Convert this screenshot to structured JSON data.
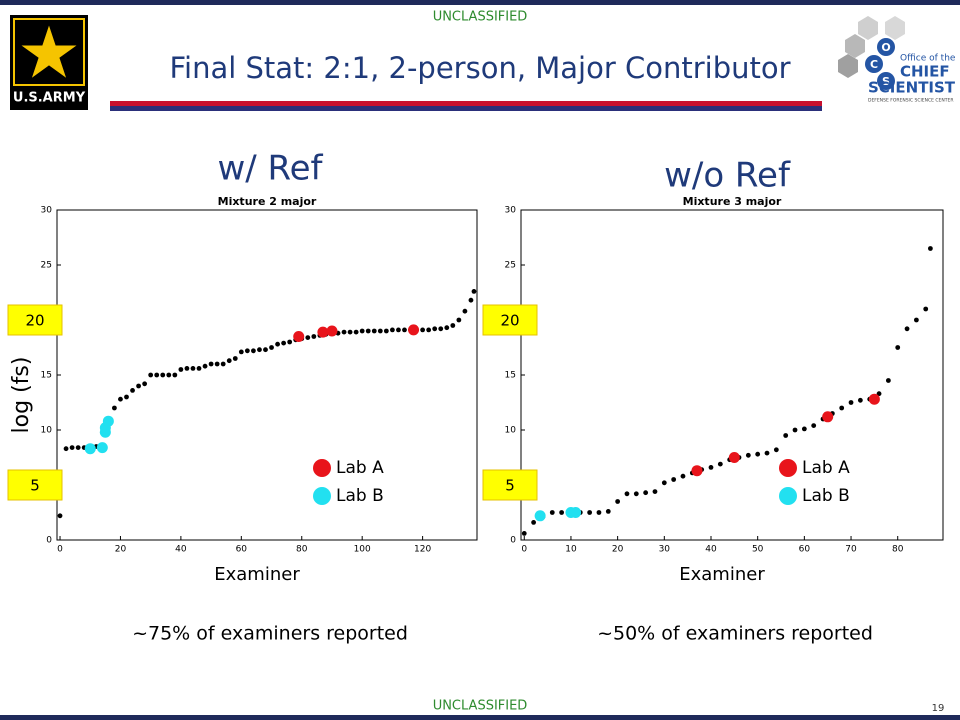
{
  "header": {
    "classification_top": "UNCLASSIFIED",
    "title": "Final Stat:  2:1, 2-person, Major Contributor",
    "army_logo": "U.S.ARMY",
    "ocs_logo": {
      "letters": [
        "O",
        "C",
        "S"
      ],
      "office": "Office of the",
      "chief": "CHIEF",
      "scientist": "SCIENTIST",
      "center": "DEFENSE FORENSIC SCIENCE CENTER"
    }
  },
  "footer": {
    "classification_bottom": "UNCLASSIFIED",
    "page_number": "19"
  },
  "chart_data": [
    {
      "type": "scatter",
      "heading": "w/ Ref",
      "title": "Mixture 2 major",
      "xlabel": "Examiner",
      "ylabel": "log (fs)",
      "caption": "~75% of examiners reported",
      "highlight_levels": [
        20,
        5
      ],
      "xlim": [
        -1,
        138
      ],
      "ylim": [
        0,
        30
      ],
      "xticks": [
        0,
        20,
        40,
        60,
        80,
        100,
        120
      ],
      "yticks": [
        0,
        5,
        10,
        15,
        20,
        25,
        30
      ],
      "legend": "lower right",
      "series": [
        {
          "color": "#000000",
          "x": [
            0,
            2,
            4,
            6,
            8,
            10,
            12,
            14,
            16,
            18,
            20,
            22,
            24,
            26,
            28,
            30,
            32,
            34,
            36,
            38,
            40,
            42,
            44,
            46,
            48,
            50,
            52,
            54,
            56,
            58,
            60,
            62,
            64,
            66,
            68,
            70,
            72,
            74,
            76,
            78,
            80,
            82,
            84,
            86,
            88,
            90,
            92,
            94,
            96,
            98,
            100,
            102,
            104,
            106,
            108,
            110,
            112,
            114,
            116,
            118,
            120,
            122,
            124,
            126,
            128,
            130,
            132,
            134,
            136,
            137
          ],
          "values": [
            2.2,
            8.3,
            8.4,
            8.4,
            8.4,
            8.5,
            8.5,
            9.8,
            10.8,
            12,
            12.8,
            13,
            13.6,
            14,
            14.2,
            15,
            15,
            15,
            15,
            15,
            15.5,
            15.6,
            15.6,
            15.6,
            15.8,
            16,
            16,
            16,
            16.3,
            16.5,
            17.1,
            17.2,
            17.2,
            17.3,
            17.3,
            17.5,
            17.8,
            17.9,
            18,
            18.2,
            18.3,
            18.4,
            18.5,
            18.6,
            18.7,
            18.8,
            18.8,
            18.9,
            18.9,
            18.9,
            19,
            19,
            19,
            19,
            19,
            19.1,
            19.1,
            19.1,
            19.1,
            19.1,
            19.1,
            19.1,
            19.2,
            19.2,
            19.3,
            19.5,
            20,
            20.8,
            21.8,
            22.6
          ]
        },
        {
          "name": "Lab A",
          "color": "#e8141b",
          "x": [
            79,
            87,
            90,
            117
          ],
          "values": [
            18.5,
            18.9,
            19,
            19.1
          ]
        },
        {
          "name": "Lab B",
          "color": "#22e0f0",
          "x": [
            10,
            14,
            15,
            15,
            16
          ],
          "values": [
            8.3,
            8.4,
            9.8,
            10.2,
            10.8
          ]
        }
      ]
    },
    {
      "type": "scatter",
      "heading": "w/o Ref",
      "title": "Mixture 3 major",
      "xlabel": "Examiner",
      "caption": "~50% of examiners reported",
      "highlight_levels": [
        20,
        5
      ],
      "xlim": [
        -0.7,
        89.7
      ],
      "ylim": [
        0,
        30
      ],
      "xticks": [
        0,
        10,
        20,
        30,
        40,
        50,
        60,
        70,
        80
      ],
      "yticks": [
        0,
        5,
        10,
        15,
        20,
        25,
        30
      ],
      "legend": "lower right",
      "series": [
        {
          "color": "#000000",
          "x": [
            0,
            2,
            4,
            6,
            8,
            10,
            12,
            14,
            16,
            18,
            20,
            22,
            24,
            26,
            28,
            30,
            32,
            34,
            36,
            38,
            40,
            42,
            44,
            46,
            48,
            50,
            52,
            54,
            56,
            58,
            60,
            62,
            64,
            66,
            68,
            70,
            72,
            74,
            76,
            78,
            80,
            82,
            84,
            86,
            87
          ],
          "values": [
            0.6,
            1.6,
            2.1,
            2.5,
            2.5,
            2.5,
            2.5,
            2.5,
            2.5,
            2.6,
            3.5,
            4.2,
            4.2,
            4.3,
            4.4,
            5.2,
            5.5,
            5.8,
            6.1,
            6.4,
            6.6,
            6.9,
            7.3,
            7.5,
            7.7,
            7.8,
            7.9,
            8.2,
            9.5,
            10,
            10.1,
            10.4,
            11,
            11.5,
            12,
            12.5,
            12.7,
            12.8,
            13.3,
            14.5,
            17.5,
            19.2,
            20,
            21,
            26.5
          ]
        },
        {
          "name": "Lab A",
          "color": "#e8141b",
          "x": [
            37,
            45,
            65,
            75
          ],
          "values": [
            6.3,
            7.5,
            11.2,
            12.8
          ]
        },
        {
          "name": "Lab B",
          "color": "#22e0f0",
          "x": [
            3.4,
            10,
            11
          ],
          "values": [
            2.2,
            2.5,
            2.5
          ]
        }
      ]
    }
  ]
}
